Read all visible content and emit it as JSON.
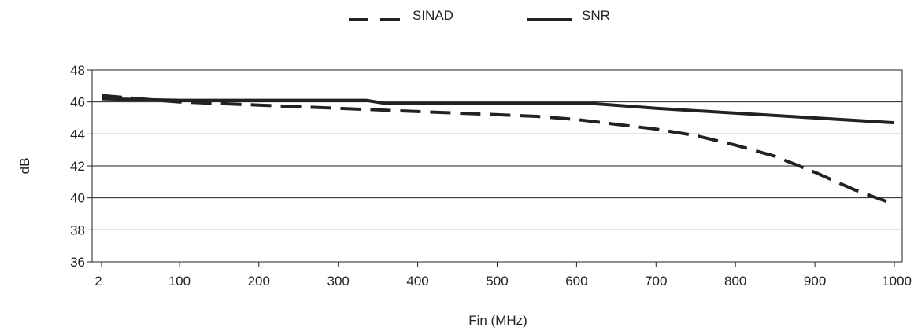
{
  "chart_data": {
    "type": "line",
    "title": "",
    "xlabel": "Fin (MHz)",
    "ylabel": "dB",
    "xlim": [
      2,
      1000
    ],
    "ylim": [
      36,
      48
    ],
    "xticks": [
      2,
      100,
      200,
      300,
      400,
      500,
      600,
      700,
      800,
      900,
      1000
    ],
    "yticks": [
      36,
      38,
      40,
      42,
      44,
      46,
      48
    ],
    "grid": "horizontal",
    "legend_position": "top-center",
    "series": [
      {
        "name": "SINAD",
        "style": "dashed",
        "color": "#222222",
        "x": [
          2,
          50,
          100,
          150,
          200,
          250,
          300,
          350,
          400,
          450,
          500,
          550,
          600,
          650,
          700,
          750,
          800,
          850,
          900,
          950,
          1000
        ],
        "y": [
          46.4,
          46.2,
          46.0,
          45.9,
          45.8,
          45.7,
          45.6,
          45.5,
          45.4,
          45.3,
          45.2,
          45.1,
          44.9,
          44.6,
          44.3,
          43.9,
          43.3,
          42.6,
          41.6,
          40.5,
          39.6
        ]
      },
      {
        "name": "SNR",
        "style": "solid",
        "color": "#222222",
        "x": [
          2,
          100,
          200,
          300,
          335,
          360,
          400,
          500,
          600,
          620,
          700,
          800,
          900,
          1000
        ],
        "y": [
          46.2,
          46.1,
          46.1,
          46.1,
          46.1,
          45.9,
          45.9,
          45.9,
          45.9,
          45.9,
          45.6,
          45.3,
          45.0,
          44.7
        ]
      }
    ]
  }
}
